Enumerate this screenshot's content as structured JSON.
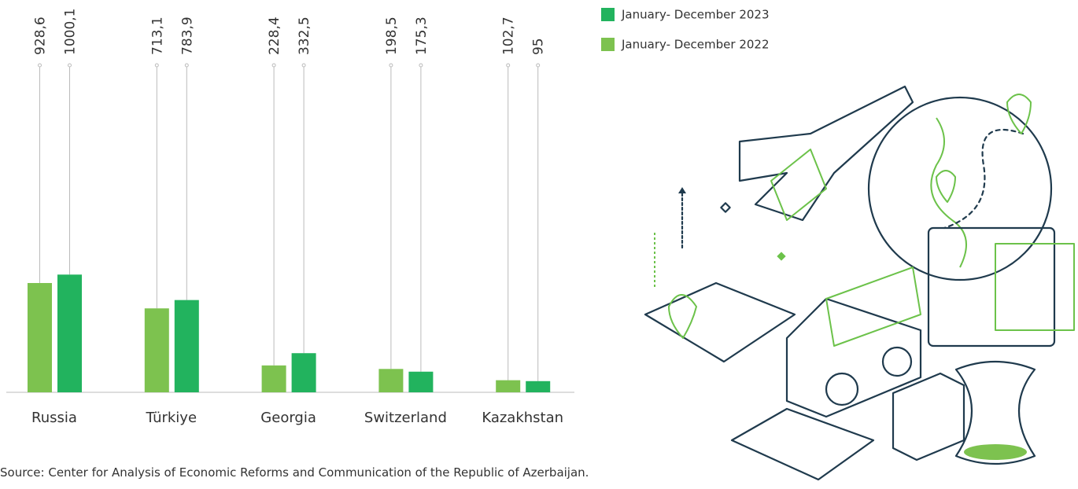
{
  "chart_data": {
    "type": "bar",
    "source": "Source: Center for Analysis of Economic Reforms and Communication of the Republic of Azerbaijan.",
    "categories": [
      "Russia",
      "Türkiye",
      "Georgia",
      "Switzerland",
      "Kazakhstan"
    ],
    "series": [
      {
        "name": "January- December 2022",
        "color": "#7dc24f",
        "values": [
          928.6,
          713.1,
          228.4,
          198.5,
          102.7
        ],
        "value_labels": [
          "928,6",
          "713,1",
          "228,4",
          "198,5",
          "102,7"
        ]
      },
      {
        "name": "January- December 2023",
        "color": "#22b35e",
        "values": [
          1000.1,
          783.9,
          332.5,
          175.3,
          95
        ],
        "value_labels": [
          "1000,1",
          "783,9",
          "332,5",
          "175,3",
          "95"
        ]
      }
    ]
  }
}
